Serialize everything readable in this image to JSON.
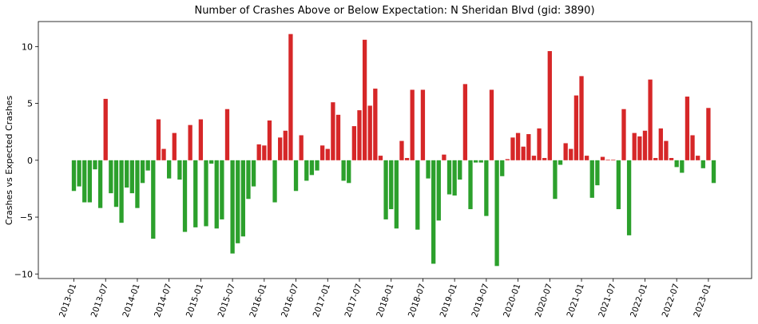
{
  "chart_data": {
    "type": "bar",
    "title": "Number of Crashes Above or Below Expectation: N Sheridan Blvd (gid: 3890)",
    "ylabel": "Crashes vs Expected Crashes",
    "xlabel": "",
    "ylim": [
      -10.4,
      12.2
    ],
    "yticks": [
      -10,
      -5,
      0,
      5,
      10
    ],
    "grid": false,
    "colors": {
      "above": "#d62728",
      "below": "#2ca02c"
    },
    "categories": [
      "2013-01",
      "2013-02",
      "2013-03",
      "2013-04",
      "2013-05",
      "2013-06",
      "2013-07",
      "2013-08",
      "2013-09",
      "2013-10",
      "2013-11",
      "2013-12",
      "2014-01",
      "2014-02",
      "2014-03",
      "2014-04",
      "2014-05",
      "2014-06",
      "2014-07",
      "2014-08",
      "2014-09",
      "2014-10",
      "2014-11",
      "2014-12",
      "2015-01",
      "2015-02",
      "2015-03",
      "2015-04",
      "2015-05",
      "2015-06",
      "2015-07",
      "2015-08",
      "2015-09",
      "2015-10",
      "2015-11",
      "2015-12",
      "2016-01",
      "2016-02",
      "2016-03",
      "2016-04",
      "2016-05",
      "2016-06",
      "2016-07",
      "2016-08",
      "2016-09",
      "2016-10",
      "2016-11",
      "2016-12",
      "2017-01",
      "2017-02",
      "2017-03",
      "2017-04",
      "2017-05",
      "2017-06",
      "2017-07",
      "2017-08",
      "2017-09",
      "2017-10",
      "2017-11",
      "2017-12",
      "2018-01",
      "2018-02",
      "2018-03",
      "2018-04",
      "2018-05",
      "2018-06",
      "2018-07",
      "2018-08",
      "2018-09",
      "2018-10",
      "2018-11",
      "2018-12",
      "2019-01",
      "2019-02",
      "2019-03",
      "2019-04",
      "2019-05",
      "2019-06",
      "2019-07",
      "2019-08",
      "2019-09",
      "2019-10",
      "2019-11",
      "2019-12",
      "2020-01",
      "2020-02",
      "2020-03",
      "2020-04",
      "2020-05",
      "2020-06",
      "2020-07",
      "2020-08",
      "2020-09",
      "2020-10",
      "2020-11",
      "2020-12",
      "2021-01",
      "2021-02",
      "2021-03",
      "2021-04",
      "2021-05",
      "2021-06",
      "2021-07",
      "2021-08",
      "2021-09",
      "2021-10",
      "2021-11",
      "2021-12",
      "2022-01",
      "2022-02",
      "2022-03",
      "2022-04",
      "2022-05",
      "2022-06",
      "2022-07",
      "2022-08",
      "2022-09",
      "2022-10",
      "2022-11",
      "2022-12",
      "2023-01",
      "2023-02"
    ],
    "values": [
      -2.7,
      -2.3,
      -3.7,
      -3.7,
      -0.8,
      -4.2,
      5.4,
      -2.9,
      -4.1,
      -5.5,
      -2.4,
      -2.9,
      -4.2,
      -2.0,
      -0.9,
      -6.9,
      3.6,
      1.0,
      -1.6,
      2.4,
      -1.7,
      -6.3,
      3.1,
      -5.9,
      3.6,
      -5.8,
      -0.3,
      -6.0,
      -5.2,
      4.5,
      -8.2,
      -7.3,
      -6.7,
      -3.4,
      -2.3,
      1.4,
      1.3,
      3.5,
      -3.7,
      2.0,
      2.6,
      11.1,
      -2.7,
      2.2,
      -1.8,
      -1.3,
      -0.9,
      1.3,
      1.0,
      5.1,
      4.0,
      -1.8,
      -2.0,
      3.0,
      4.4,
      10.6,
      4.8,
      6.3,
      0.4,
      -5.2,
      -4.3,
      -6.0,
      1.7,
      0.2,
      6.2,
      -6.1,
      6.2,
      -1.6,
      -9.1,
      -5.3,
      0.5,
      -3.0,
      -3.1,
      -1.7,
      6.7,
      -4.3,
      -0.2,
      -0.2,
      -4.9,
      6.2,
      -9.3,
      -1.4,
      0.1,
      2.0,
      2.4,
      1.2,
      2.3,
      0.4,
      2.8,
      0.2,
      9.6,
      -3.4,
      -0.4,
      1.5,
      1.0,
      5.7,
      7.4,
      0.4,
      -3.3,
      -2.2,
      0.3,
      0.05,
      0.05,
      -4.3,
      4.5,
      -6.6,
      2.4,
      2.1,
      2.6,
      7.1,
      0.2,
      2.8,
      1.7,
      0.2,
      -0.6,
      -1.1,
      5.6,
      2.2,
      0.4,
      -0.7,
      4.6,
      -2.0
    ],
    "xtick_labels": [
      "2013-01",
      "2013-07",
      "2014-01",
      "2014-07",
      "2015-01",
      "2015-07",
      "2016-01",
      "2016-07",
      "2017-01",
      "2017-07",
      "2018-01",
      "2018-07",
      "2019-01",
      "2019-07",
      "2020-01",
      "2020-07",
      "2021-01",
      "2021-07",
      "2022-01",
      "2022-07",
      "2023-01"
    ]
  }
}
